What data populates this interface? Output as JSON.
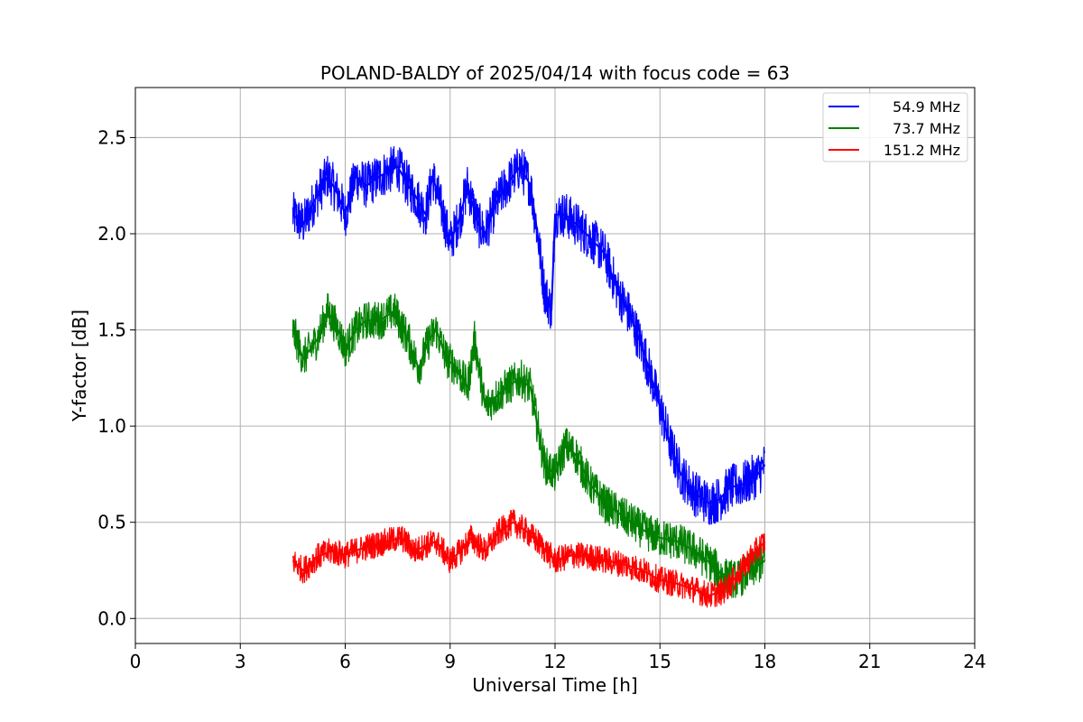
{
  "chart_data": {
    "type": "line",
    "title": "POLAND-BALDY of 2025/04/14 with focus code = 63",
    "xlabel": "Universal Time [h]",
    "ylabel": "Y-factor [dB]",
    "xlim": [
      0,
      24
    ],
    "ylim": [
      -0.13,
      2.76
    ],
    "x_ticks": [
      0,
      3,
      6,
      9,
      12,
      15,
      18,
      21,
      24
    ],
    "x_tick_labels": [
      "0",
      "3",
      "6",
      "9",
      "12",
      "15",
      "18",
      "21",
      "24"
    ],
    "y_ticks": [
      0.0,
      0.5,
      1.0,
      1.5,
      2.0,
      2.5
    ],
    "y_tick_labels": [
      "0.0",
      "0.5",
      "1.0",
      "1.5",
      "2.0",
      "2.5"
    ],
    "grid": true,
    "legend_position": "top-right",
    "series": [
      {
        "name": "54.9 MHz",
        "color": "#0000ff",
        "noise_amplitude": 0.12,
        "x": [
          4.5,
          4.8,
          5.2,
          5.5,
          5.8,
          6.0,
          6.3,
          6.6,
          7.0,
          7.5,
          7.8,
          8.0,
          8.3,
          8.5,
          8.8,
          9.0,
          9.3,
          9.5,
          9.8,
          10.0,
          10.3,
          10.6,
          11.0,
          11.3,
          11.5,
          11.7,
          11.9,
          12.0,
          12.3,
          12.6,
          13.0,
          13.4,
          13.8,
          14.2,
          14.6,
          15.0,
          15.3,
          15.6,
          16.0,
          16.4,
          16.7,
          17.0,
          17.4,
          17.8,
          18.0
        ],
        "y": [
          2.1,
          2.05,
          2.2,
          2.3,
          2.2,
          2.1,
          2.3,
          2.25,
          2.3,
          2.35,
          2.25,
          2.2,
          2.1,
          2.3,
          2.1,
          1.95,
          2.1,
          2.25,
          2.05,
          2.0,
          2.15,
          2.25,
          2.35,
          2.25,
          2.0,
          1.7,
          1.6,
          2.1,
          2.1,
          2.05,
          1.98,
          1.9,
          1.7,
          1.55,
          1.35,
          1.1,
          0.9,
          0.75,
          0.65,
          0.6,
          0.62,
          0.68,
          0.7,
          0.75,
          0.8
        ]
      },
      {
        "name": "73.7 MHz",
        "color": "#008000",
        "noise_amplitude": 0.1,
        "x": [
          4.5,
          4.8,
          5.2,
          5.5,
          5.8,
          6.0,
          6.3,
          6.6,
          7.0,
          7.4,
          7.8,
          8.1,
          8.4,
          8.6,
          8.9,
          9.2,
          9.5,
          9.7,
          10.0,
          10.3,
          10.6,
          11.0,
          11.3,
          11.5,
          11.7,
          12.0,
          12.3,
          12.6,
          13.0,
          13.4,
          13.8,
          14.2,
          14.6,
          15.0,
          15.5,
          16.0,
          16.5,
          16.8,
          17.2,
          17.6,
          18.0
        ],
        "y": [
          1.5,
          1.35,
          1.45,
          1.6,
          1.5,
          1.4,
          1.5,
          1.55,
          1.55,
          1.6,
          1.45,
          1.3,
          1.45,
          1.5,
          1.35,
          1.3,
          1.2,
          1.45,
          1.1,
          1.15,
          1.2,
          1.25,
          1.2,
          1.0,
          0.8,
          0.75,
          0.9,
          0.85,
          0.7,
          0.6,
          0.55,
          0.5,
          0.45,
          0.42,
          0.4,
          0.35,
          0.28,
          0.22,
          0.2,
          0.25,
          0.3
        ]
      },
      {
        "name": "151.2 MHz",
        "color": "#ff0000",
        "noise_amplitude": 0.07,
        "x": [
          4.5,
          4.8,
          5.2,
          5.6,
          6.0,
          6.4,
          6.8,
          7.2,
          7.6,
          8.0,
          8.3,
          8.6,
          9.0,
          9.3,
          9.6,
          10.0,
          10.4,
          10.8,
          11.2,
          11.6,
          12.0,
          12.5,
          13.0,
          13.5,
          14.0,
          14.5,
          15.0,
          15.5,
          16.0,
          16.4,
          16.8,
          17.2,
          17.6,
          18.0
        ],
        "y": [
          0.3,
          0.25,
          0.32,
          0.35,
          0.33,
          0.36,
          0.38,
          0.4,
          0.42,
          0.35,
          0.38,
          0.4,
          0.3,
          0.35,
          0.42,
          0.35,
          0.45,
          0.5,
          0.45,
          0.38,
          0.3,
          0.33,
          0.32,
          0.3,
          0.28,
          0.25,
          0.2,
          0.18,
          0.15,
          0.12,
          0.14,
          0.22,
          0.32,
          0.4
        ]
      }
    ]
  }
}
